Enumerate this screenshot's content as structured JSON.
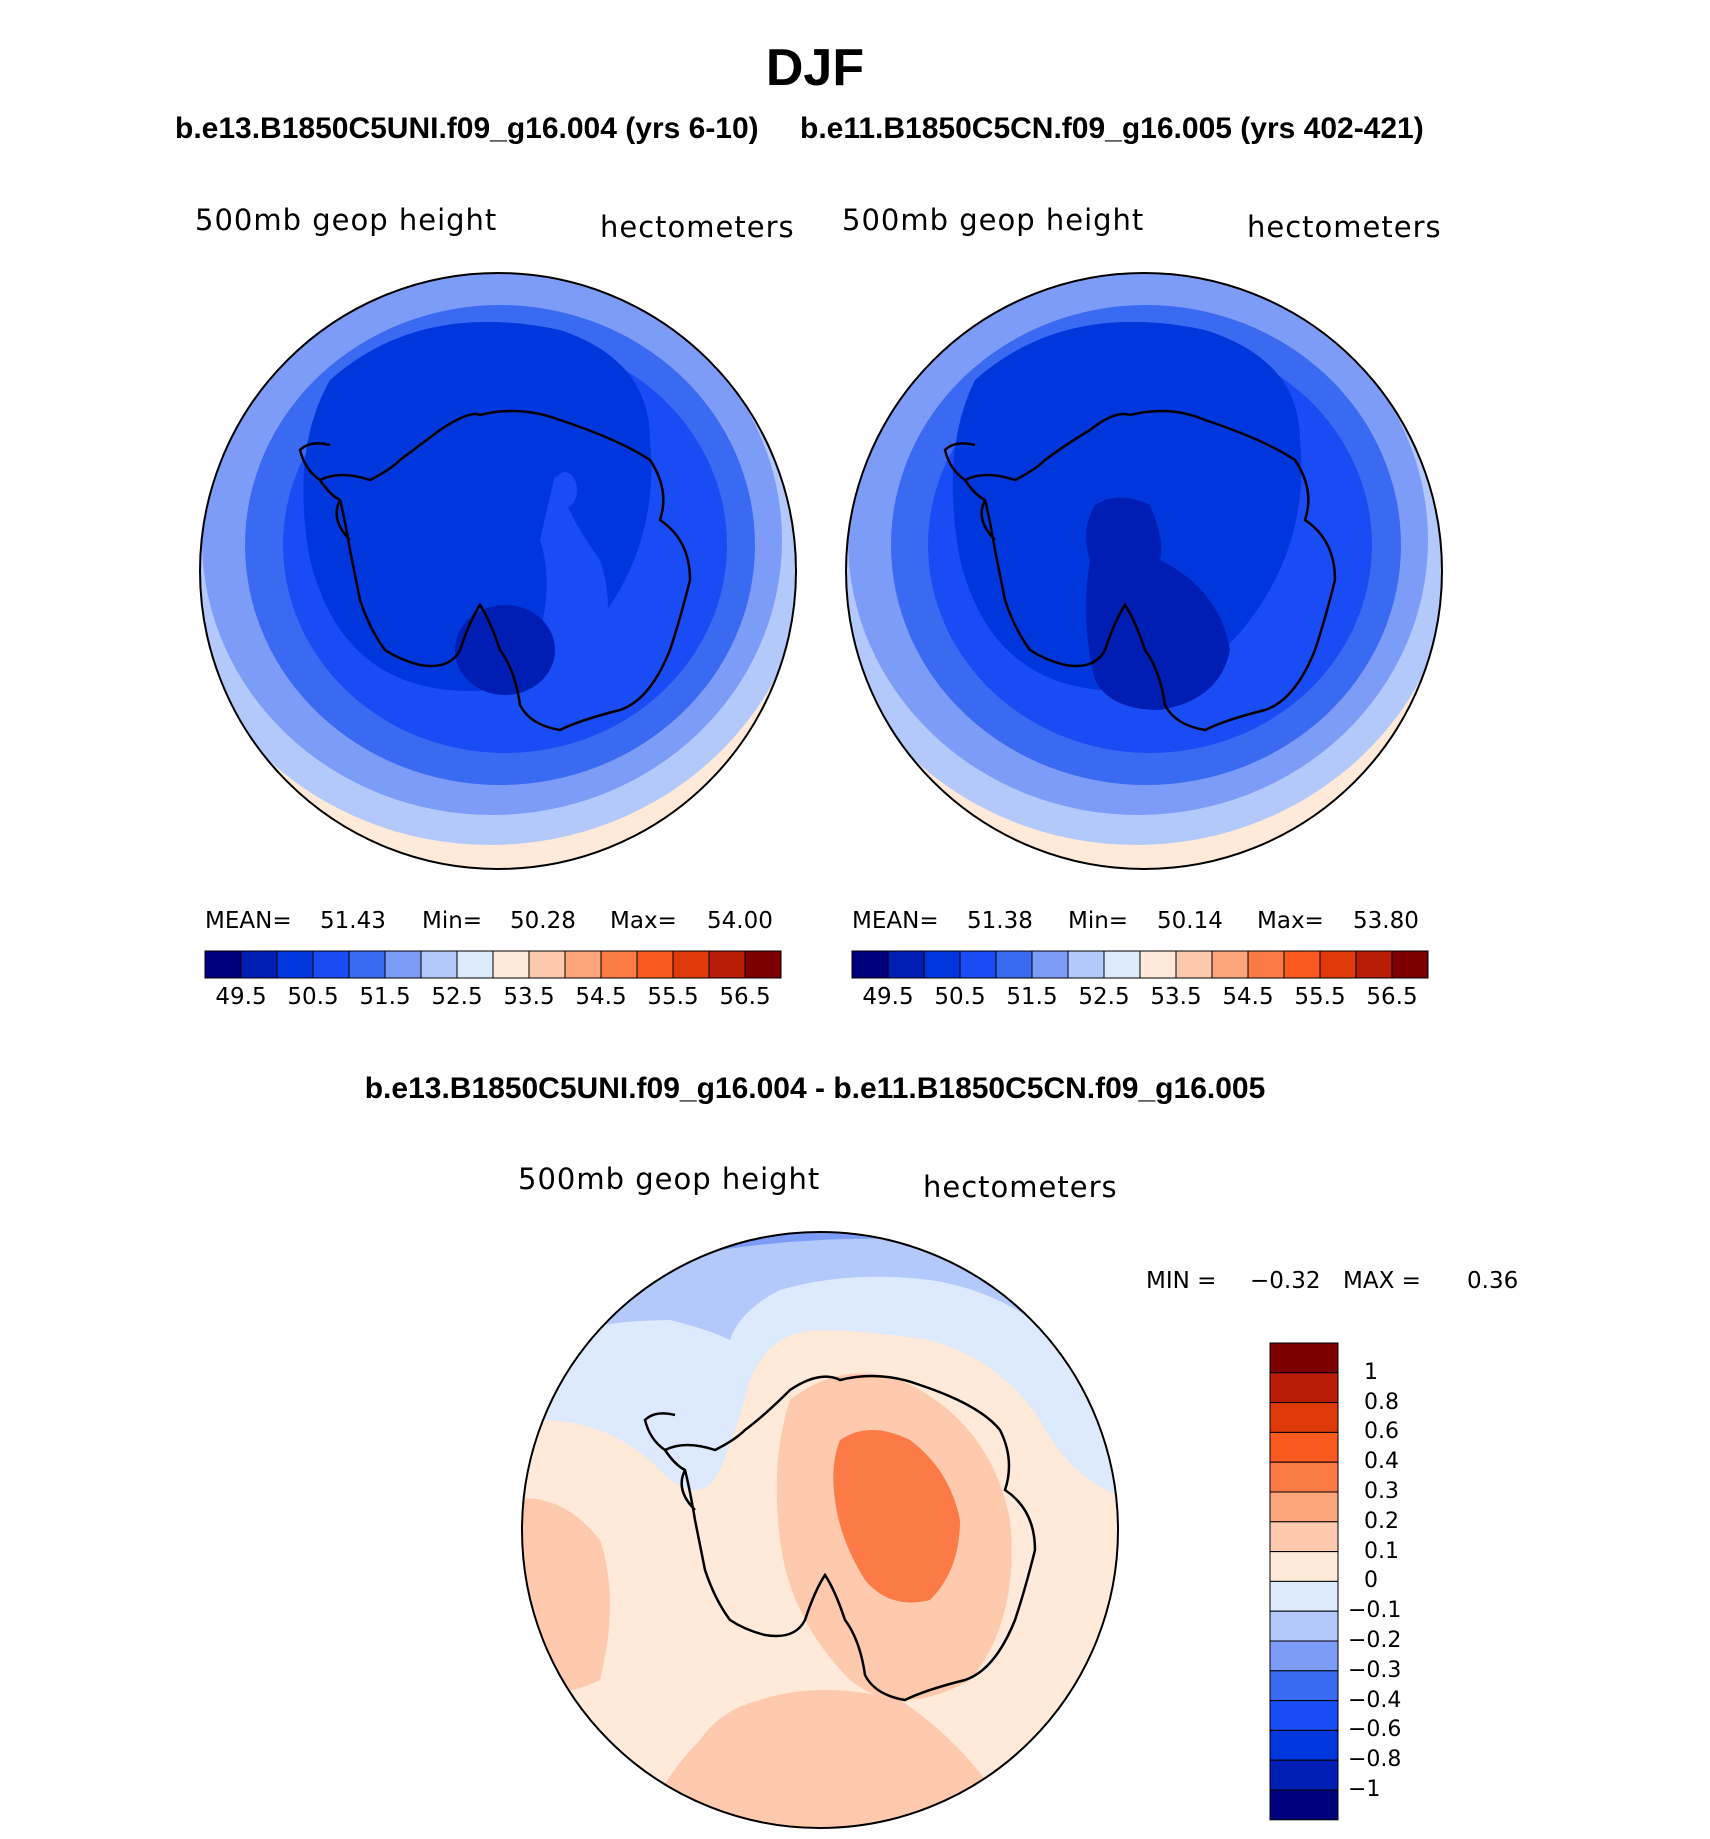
{
  "title": "DJF",
  "colors": {
    "seq": [
      "#00007f",
      "#001eb3",
      "#0037dc",
      "#1a4cf5",
      "#3a6af2",
      "#7d9cf7",
      "#b3c8fb",
      "#dde9fd",
      "#ffe9d9",
      "#ffc9ad",
      "#fda57a",
      "#fc7a45",
      "#fa5a1e",
      "#e03a0a",
      "#b81c04",
      "#7d0000"
    ],
    "land_outline": "#000000"
  },
  "panels": [
    {
      "case_title": "b.e13.B1850C5UNI.f09_g16.004 (yrs 6-10)",
      "variable": "500mb geop height",
      "units": "hectometers",
      "stats": {
        "mean_label": "MEAN=",
        "mean": "51.43",
        "min_label": "Min=",
        "min": "50.28",
        "max_label": "Max=",
        "max": "54.00"
      },
      "colorbar_ticks": [
        "49.5",
        "50.5",
        "51.5",
        "52.5",
        "53.5",
        "54.5",
        "55.5",
        "56.5"
      ]
    },
    {
      "case_title": "b.e11.B1850C5CN.f09_g16.005 (yrs 402-421)",
      "variable": "500mb geop height",
      "units": "hectometers",
      "stats": {
        "mean_label": "MEAN=",
        "mean": "51.38",
        "min_label": "Min=",
        "min": "50.14",
        "max_label": "Max=",
        "max": "53.80"
      },
      "colorbar_ticks": [
        "49.5",
        "50.5",
        "51.5",
        "52.5",
        "53.5",
        "54.5",
        "55.5",
        "56.5"
      ]
    }
  ],
  "difference": {
    "title": "b.e13.B1850C5UNI.f09_g16.004 - b.e11.B1850C5CN.f09_g16.005",
    "variable": "500mb geop height",
    "units": "hectometers",
    "stats": {
      "min_label": "MIN =",
      "min": "−0.32",
      "max_label": "MAX =",
      "max": "0.36"
    },
    "colorbar_ticks": [
      "1",
      "0.8",
      "0.6",
      "0.4",
      "0.3",
      "0.2",
      "0.1",
      "0",
      "−0.1",
      "−0.2",
      "−0.3",
      "−0.4",
      "−0.6",
      "−0.8",
      "−1"
    ]
  }
}
